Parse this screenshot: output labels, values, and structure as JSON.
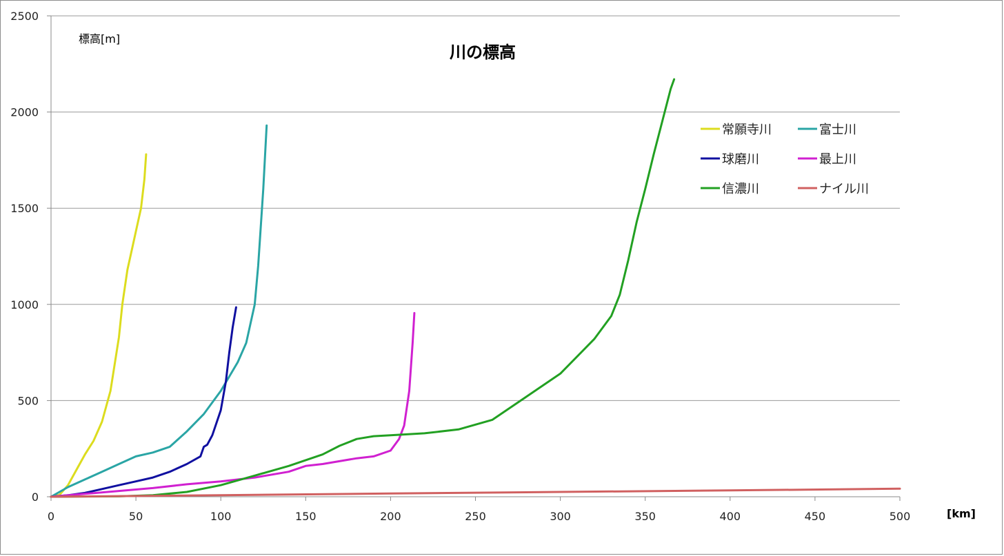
{
  "chart_data": {
    "type": "line",
    "title": "川の標高",
    "ylabel": "標高[m]",
    "xlabel": "[km]",
    "xlim": [
      0,
      500
    ],
    "ylim": [
      0,
      2500
    ],
    "x_ticks": [
      0,
      50,
      100,
      150,
      200,
      250,
      300,
      350,
      400,
      450,
      500
    ],
    "y_ticks": [
      0,
      500,
      1000,
      1500,
      2000,
      2500
    ],
    "grid": "horizontal",
    "legend_position": "top-right",
    "series": [
      {
        "name": "常願寺川",
        "color": "#dcdc1e",
        "x": [
          0,
          5,
          10,
          15,
          20,
          25,
          30,
          35,
          40,
          42,
          45,
          48,
          50,
          53,
          55,
          56
        ],
        "y": [
          0,
          10,
          60,
          140,
          220,
          290,
          390,
          550,
          830,
          1000,
          1180,
          1300,
          1380,
          1500,
          1650,
          1780
        ]
      },
      {
        "name": "富士川",
        "color": "#2aa5a5",
        "x": [
          0,
          10,
          20,
          30,
          40,
          50,
          60,
          70,
          80,
          90,
          100,
          110,
          115,
          120,
          122,
          125,
          127
        ],
        "y": [
          0,
          50,
          90,
          130,
          170,
          210,
          230,
          260,
          340,
          430,
          550,
          700,
          800,
          1000,
          1200,
          1600,
          1930
        ]
      },
      {
        "name": "球磨川",
        "color": "#1010a0",
        "x": [
          0,
          10,
          20,
          30,
          40,
          50,
          60,
          70,
          80,
          88,
          90,
          92,
          95,
          100,
          103,
          105,
          107,
          109
        ],
        "y": [
          0,
          8,
          20,
          40,
          60,
          80,
          100,
          130,
          170,
          210,
          260,
          270,
          320,
          450,
          600,
          750,
          880,
          985
        ]
      },
      {
        "name": "最上川",
        "color": "#d020d0",
        "x": [
          0,
          20,
          40,
          60,
          80,
          100,
          120,
          140,
          150,
          160,
          180,
          190,
          200,
          205,
          208,
          211,
          213,
          214
        ],
        "y": [
          0,
          15,
          30,
          45,
          65,
          80,
          100,
          130,
          160,
          170,
          200,
          210,
          240,
          300,
          370,
          550,
          800,
          955
        ]
      },
      {
        "name": "信濃川",
        "color": "#22a022",
        "x": [
          0,
          40,
          60,
          80,
          100,
          120,
          140,
          160,
          170,
          180,
          190,
          200,
          220,
          240,
          260,
          280,
          300,
          320,
          330,
          335,
          340,
          345,
          350,
          355,
          360,
          365,
          367
        ],
        "y": [
          0,
          2,
          8,
          25,
          60,
          110,
          160,
          220,
          265,
          300,
          315,
          320,
          330,
          350,
          400,
          520,
          640,
          820,
          940,
          1050,
          1230,
          1430,
          1600,
          1780,
          1950,
          2120,
          2170
        ]
      },
      {
        "name": "ナイル川",
        "color": "#d06060",
        "x": [
          0,
          100,
          200,
          300,
          400,
          500
        ],
        "y": [
          0,
          8,
          17,
          25,
          33,
          42
        ]
      }
    ]
  }
}
